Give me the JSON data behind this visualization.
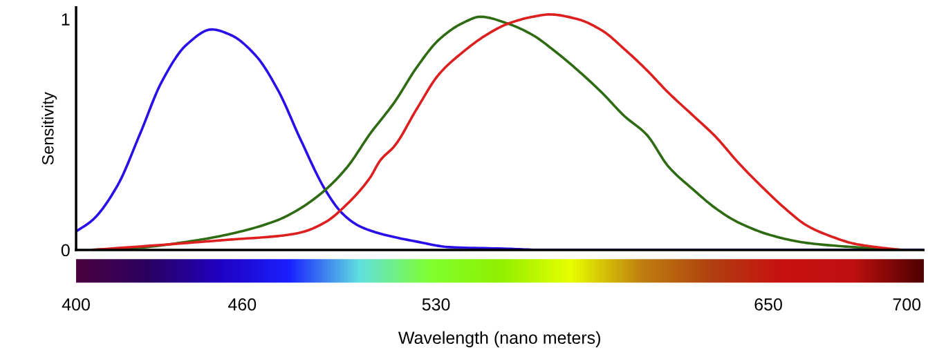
{
  "chart_data": {
    "type": "line",
    "xlabel": "Wavelength (nano meters)",
    "ylabel": "Sensitivity",
    "xlim": [
      400,
      706
    ],
    "xticks": [
      400,
      460,
      530,
      650,
      700
    ],
    "ylim": [
      0,
      1.05
    ],
    "yticks": [
      0,
      1
    ],
    "marker": "none",
    "line_style": "solid",
    "series": [
      {
        "color": "#2a10e8",
        "x": [
          400,
          406,
          415,
          423,
          431,
          440,
          449,
          456,
          465,
          473,
          481,
          490,
          496,
          502,
          510,
          523,
          535,
          556,
          568,
          706
        ],
        "values": [
          0.08,
          0.13,
          0.28,
          0.5,
          0.73,
          0.89,
          0.955,
          0.93,
          0.84,
          0.69,
          0.48,
          0.26,
          0.16,
          0.105,
          0.07,
          0.036,
          0.012,
          0.005,
          0,
          0
        ]
      },
      {
        "color": "#2e6b12",
        "x": [
          406,
          423,
          440,
          456,
          473,
          481,
          490,
          498,
          506,
          515,
          523,
          531,
          540,
          546,
          556,
          565,
          573,
          581,
          590,
          598,
          606,
          614,
          623,
          631,
          639,
          652,
          664,
          681,
          698
        ],
        "values": [
          0,
          0.01,
          0.035,
          0.07,
          0.13,
          0.18,
          0.26,
          0.36,
          0.5,
          0.64,
          0.79,
          0.91,
          0.985,
          1.01,
          0.98,
          0.93,
          0.86,
          0.78,
          0.68,
          0.58,
          0.5,
          0.36,
          0.26,
          0.18,
          0.12,
          0.06,
          0.03,
          0.012,
          0
        ]
      },
      {
        "color": "#dc1f1f",
        "x": [
          406,
          440,
          456,
          473,
          481,
          490,
          498,
          506,
          510,
          515,
          523,
          531,
          540,
          548,
          556,
          565,
          571,
          581,
          590,
          598,
          606,
          614,
          623,
          631,
          639,
          648,
          656,
          664,
          673,
          681,
          689,
          698
        ],
        "values": [
          0,
          0.03,
          0.045,
          0.06,
          0.075,
          0.12,
          0.2,
          0.31,
          0.39,
          0.45,
          0.61,
          0.76,
          0.86,
          0.93,
          0.98,
          1.01,
          1.02,
          1.0,
          0.95,
          0.87,
          0.78,
          0.68,
          0.58,
          0.49,
          0.38,
          0.27,
          0.18,
          0.105,
          0.057,
          0.027,
          0.012,
          0
        ]
      }
    ]
  }
}
